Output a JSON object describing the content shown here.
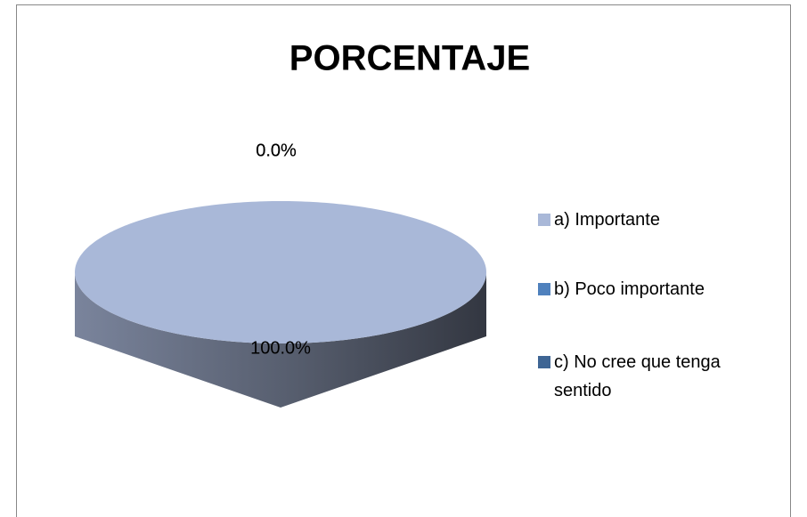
{
  "chart_data": {
    "type": "pie3d",
    "title": "PORCENTAJE",
    "categories": [
      "a) Importante",
      "b) Poco importante",
      "c) No cree que tenga sentido"
    ],
    "values": [
      100,
      0,
      0
    ],
    "value_labels": [
      "100.0%",
      "0.0%",
      "0.0%"
    ],
    "colors": [
      "#a9b8d8",
      "#4f81bd",
      "#3e6594"
    ]
  }
}
